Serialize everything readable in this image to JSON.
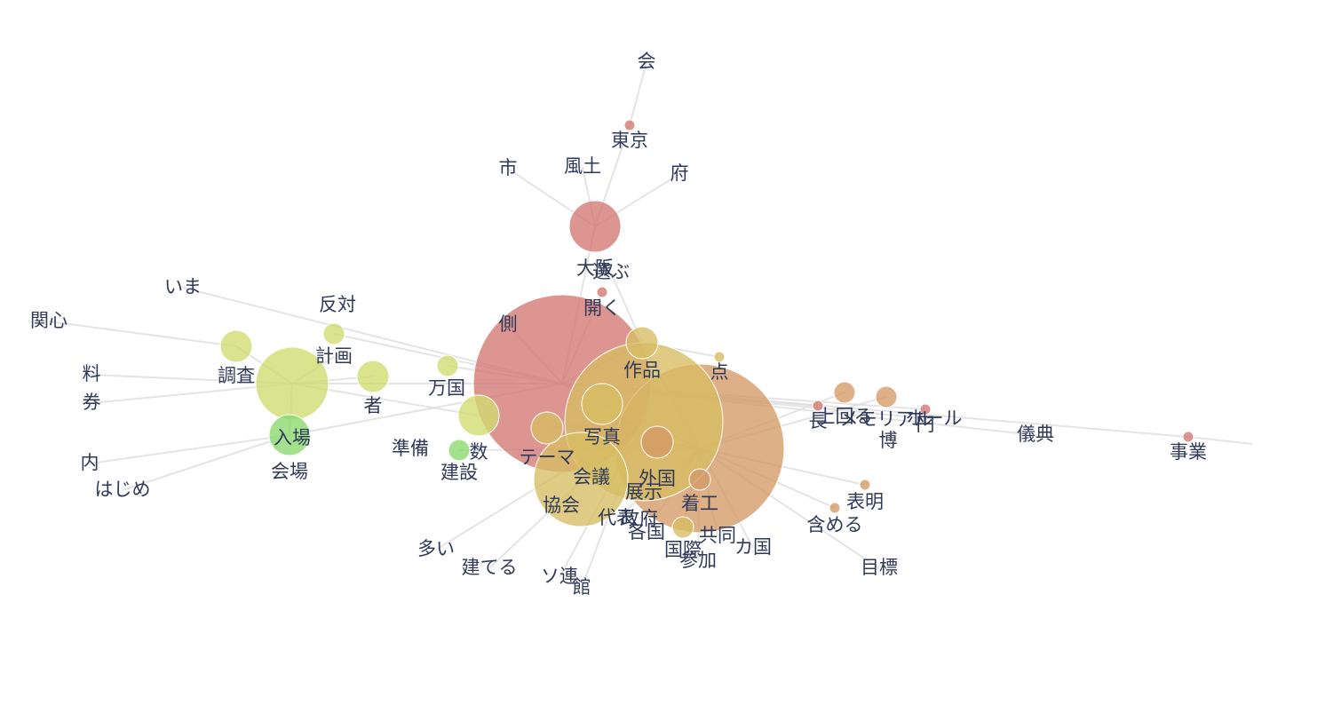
{
  "chart_data": {
    "type": "network",
    "title": "",
    "colors": {
      "red": "#d47772",
      "orange": "#d49a66",
      "gold": "#d7bd63",
      "yellow": "#d0dd6f",
      "green": "#8ad86c",
      "edge": "#dcdcdc",
      "label": "#2f3a5a"
    },
    "nodes": [
      {
        "id": "会",
        "label": "会",
        "size": 0,
        "color": "red"
      },
      {
        "id": "東京",
        "label": "東京",
        "size": 6,
        "color": "red"
      },
      {
        "id": "市",
        "label": "市",
        "size": 0,
        "color": "red"
      },
      {
        "id": "風土",
        "label": "風土",
        "size": 0,
        "color": "red"
      },
      {
        "id": "府",
        "label": "府",
        "size": 0,
        "color": "red"
      },
      {
        "id": "大阪",
        "label": "大阪",
        "size": 29,
        "color": "red"
      },
      {
        "id": "選ぶ",
        "label": "選ぶ",
        "size": 0,
        "color": "gold"
      },
      {
        "id": "開く",
        "label": "開く",
        "size": 6,
        "color": "red"
      },
      {
        "id": "側",
        "label": "側",
        "size": 0,
        "color": "red"
      },
      {
        "id": "万国",
        "label": "万国",
        "size": 100,
        "color": "red"
      },
      {
        "id": "作品",
        "label": "作品",
        "size": 18,
        "color": "gold"
      },
      {
        "id": "点",
        "label": "点",
        "size": 6,
        "color": "gold"
      },
      {
        "id": "いま",
        "label": "いま",
        "size": 0,
        "color": "yellow"
      },
      {
        "id": "反対",
        "label": "反対",
        "size": 12,
        "color": "yellow"
      },
      {
        "id": "関心",
        "label": "関心",
        "size": 0,
        "color": "yellow"
      },
      {
        "id": "計画",
        "label": "計画",
        "size": 0,
        "color": "yellow"
      },
      {
        "id": "料",
        "label": "料",
        "size": 0,
        "color": "yellow"
      },
      {
        "id": "調査",
        "label": "調査",
        "size": 18,
        "color": "yellow"
      },
      {
        "id": "券",
        "label": "券",
        "size": 0,
        "color": "yellow"
      },
      {
        "id": "者",
        "label": "者",
        "size": 18,
        "color": "yellow"
      },
      {
        "id": "入場",
        "label": "入場",
        "size": 41,
        "color": "yellow"
      },
      {
        "id": "内",
        "label": "内",
        "size": 0,
        "color": "green"
      },
      {
        "id": "はじめ",
        "label": "はじめ",
        "size": 0,
        "color": "green"
      },
      {
        "id": "会場",
        "label": "会場",
        "size": 23,
        "color": "green"
      },
      {
        "id": "準備",
        "label": "準備",
        "size": 12,
        "color": "yellow"
      },
      {
        "id": "数",
        "label": "数",
        "size": 23,
        "color": "yellow"
      },
      {
        "id": "建設",
        "label": "建設",
        "size": 12,
        "color": "green"
      },
      {
        "id": "写真",
        "label": "写真",
        "size": 23,
        "color": "gold"
      },
      {
        "id": "テーマ",
        "label": "テーマ",
        "size": 18,
        "color": "gold"
      },
      {
        "id": "会議",
        "label": "会議",
        "size": 0,
        "color": "gold"
      },
      {
        "id": "協会",
        "label": "協会",
        "size": 53,
        "color": "gold"
      },
      {
        "id": "展示",
        "label": "展示",
        "size": 89,
        "color": "gold"
      },
      {
        "id": "外国",
        "label": "外国",
        "size": 18,
        "color": "orange"
      },
      {
        "id": "代表",
        "label": "代表",
        "size": 0,
        "color": "gold"
      },
      {
        "id": "政府",
        "label": "政府",
        "size": 0,
        "color": "gold"
      },
      {
        "id": "各国",
        "label": "各国",
        "size": 0,
        "color": "gold"
      },
      {
        "id": "多い",
        "label": "多い",
        "size": 0,
        "color": "gold"
      },
      {
        "id": "建てる",
        "label": "建てる",
        "size": 0,
        "color": "gold"
      },
      {
        "id": "ソ連",
        "label": "ソ連",
        "size": 0,
        "color": "gold"
      },
      {
        "id": "館",
        "label": "館",
        "size": 0,
        "color": "gold"
      },
      {
        "id": "国際",
        "label": "国際",
        "size": 12,
        "color": "gold"
      },
      {
        "id": "参加",
        "label": "参加",
        "size": 0,
        "color": "orange"
      },
      {
        "id": "共同",
        "label": "共同",
        "size": 0,
        "color": "orange"
      },
      {
        "id": "カ国",
        "label": "カ国",
        "size": 0,
        "color": "orange"
      },
      {
        "id": "博",
        "label": "博",
        "size": 95,
        "color": "orange"
      },
      {
        "id": "着工",
        "label": "着工",
        "size": 12,
        "color": "orange"
      },
      {
        "id": "表明",
        "label": "表明",
        "size": 6,
        "color": "orange"
      },
      {
        "id": "含める",
        "label": "含める",
        "size": 6,
        "color": "orange"
      },
      {
        "id": "目標",
        "label": "目標",
        "size": 0,
        "color": "orange"
      },
      {
        "id": "上回る",
        "label": "上回る",
        "size": 12,
        "color": "orange"
      },
      {
        "id": "長",
        "label": "長",
        "size": 6,
        "color": "red"
      },
      {
        "id": "メモリアル",
        "label": "メモリアル",
        "size": 12,
        "color": "orange"
      },
      {
        "id": "円",
        "label": "円",
        "size": 6,
        "color": "red"
      },
      {
        "id": "ホール",
        "label": "ホール",
        "size": 0,
        "color": "red"
      },
      {
        "id": "儀典",
        "label": "儀典",
        "size": 0,
        "color": "red"
      },
      {
        "id": "事業",
        "label": "事業",
        "size": 6,
        "color": "red"
      }
    ],
    "edges": [
      [
        "会",
        "東京"
      ],
      [
        "東京",
        "大阪"
      ],
      [
        "市",
        "大阪"
      ],
      [
        "風土",
        "大阪"
      ],
      [
        "府",
        "大阪"
      ],
      [
        "大阪",
        "万国"
      ],
      [
        "選ぶ",
        "作品"
      ],
      [
        "開く",
        "万国"
      ],
      [
        "側",
        "万国"
      ],
      [
        "作品",
        "点"
      ],
      [
        "作品",
        "万国"
      ],
      [
        "作品",
        "博"
      ],
      [
        "いま",
        "万国"
      ],
      [
        "反対",
        "万国"
      ],
      [
        "関心",
        "調査"
      ],
      [
        "調査",
        "入場"
      ],
      [
        "料",
        "入場"
      ],
      [
        "券",
        "入場"
      ],
      [
        "計画",
        "入場"
      ],
      [
        "者",
        "入場"
      ],
      [
        "入場",
        "万国"
      ],
      [
        "入場",
        "会場"
      ],
      [
        "内",
        "会場"
      ],
      [
        "はじめ",
        "会場"
      ],
      [
        "会場",
        "万国"
      ],
      [
        "準備",
        "万国"
      ],
      [
        "数",
        "入場"
      ],
      [
        "建設",
        "博"
      ],
      [
        "写真",
        "展示"
      ],
      [
        "テーマ",
        "展示"
      ],
      [
        "会議",
        "展示"
      ],
      [
        "協会",
        "展示"
      ],
      [
        "展示",
        "万国"
      ],
      [
        "展示",
        "博"
      ],
      [
        "外国",
        "博"
      ],
      [
        "代表",
        "博"
      ],
      [
        "政府",
        "博"
      ],
      [
        "各国",
        "博"
      ],
      [
        "多い",
        "展示"
      ],
      [
        "建てる",
        "展示"
      ],
      [
        "ソ連",
        "展示"
      ],
      [
        "館",
        "展示"
      ],
      [
        "国際",
        "博"
      ],
      [
        "参加",
        "博"
      ],
      [
        "共同",
        "博"
      ],
      [
        "カ国",
        "博"
      ],
      [
        "博",
        "万国"
      ],
      [
        "着工",
        "博"
      ],
      [
        "表明",
        "博"
      ],
      [
        "含める",
        "博"
      ],
      [
        "目標",
        "博"
      ],
      [
        "上回る",
        "博"
      ],
      [
        "長",
        "万国"
      ],
      [
        "メモリアル",
        "博"
      ],
      [
        "円",
        "万国"
      ],
      [
        "ホール",
        "万国"
      ],
      [
        "儀典",
        "万国"
      ],
      [
        "事業",
        "万国"
      ]
    ]
  }
}
